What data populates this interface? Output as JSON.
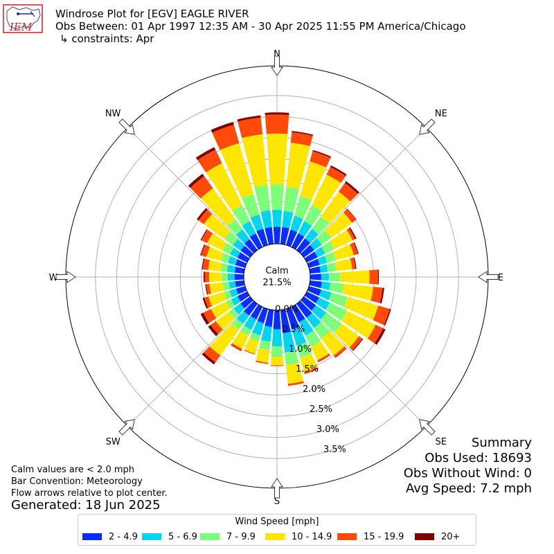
{
  "header": {
    "title": "Windrose Plot for [EGV] EAGLE RIVER",
    "subtitle": "Obs Between: 01 Apr 1997 12:35 AM - 30 Apr 2025 11:55 PM America/Chicago",
    "constraints": "↳ constraints: Apr"
  },
  "logo": {
    "text": "IEM"
  },
  "notes": {
    "calm": "Calm values are < 2.0 mph",
    "bar_convention": "Bar Convention: Meteorology",
    "flow": "Flow arrows relative to plot center.",
    "generated": "Generated: 18 Jun 2025"
  },
  "summary": {
    "heading": "Summary",
    "obs_used": "Obs Used: 18693",
    "obs_without_wind": "Obs Without Wind: 0",
    "avg_speed": "Avg Speed: 7.2 mph"
  },
  "legend": {
    "title": "Wind Speed [mph]",
    "items": [
      {
        "label": "2 - 4.9",
        "color": "#0a2dff"
      },
      {
        "label": "5 - 6.9",
        "color": "#00d5f0"
      },
      {
        "label": "7 - 9.9",
        "color": "#7dff7a"
      },
      {
        "label": "10 - 14.9",
        "color": "#ffe600"
      },
      {
        "label": "15 - 19.9",
        "color": "#ff4a0a"
      },
      {
        "label": "20+",
        "color": "#800000"
      }
    ]
  },
  "chart_data": {
    "type": "windrose",
    "calm_label": "Calm",
    "calm_value": "21.5%",
    "radial_labels": [
      "0.0%",
      "0.5%",
      "1.0%",
      "1.5%",
      "2.0%",
      "2.5%",
      "3.0%",
      "3.5%"
    ],
    "radial_ticks": [
      0,
      0.5,
      1.0,
      1.5,
      2.0,
      2.5,
      3.0,
      3.5
    ],
    "rmax": 4.2,
    "compass_labels": [
      "N",
      "NE",
      "E",
      "SE",
      "S",
      "SW",
      "W",
      "NW"
    ],
    "directions_deg": [
      0,
      10,
      20,
      30,
      40,
      50,
      60,
      70,
      80,
      90,
      100,
      110,
      120,
      130,
      140,
      150,
      160,
      170,
      180,
      190,
      200,
      210,
      220,
      230,
      240,
      250,
      260,
      270,
      280,
      290,
      300,
      310,
      320,
      330,
      340,
      350
    ],
    "bins": [
      "2 - 4.9",
      "5 - 6.9",
      "7 - 9.9",
      "10 - 14.9",
      "15 - 19.9",
      "20+"
    ],
    "cumulative": [
      [
        0.4,
        0.8,
        1.4,
        2.6,
        3.05,
        3.1
      ],
      [
        0.4,
        0.78,
        1.35,
        2.4,
        2.65,
        2.68
      ],
      [
        0.38,
        0.72,
        1.2,
        2.05,
        2.3,
        2.33
      ],
      [
        0.36,
        0.68,
        1.1,
        1.9,
        2.1,
        2.14
      ],
      [
        0.34,
        0.62,
        0.98,
        1.7,
        1.95,
        2.0
      ],
      [
        0.3,
        0.52,
        0.8,
        1.4,
        1.52,
        1.53
      ],
      [
        0.28,
        0.48,
        0.72,
        1.2,
        1.27,
        1.3
      ],
      [
        0.26,
        0.44,
        0.66,
        1.1,
        1.2,
        1.22
      ],
      [
        0.25,
        0.42,
        0.62,
        1.0,
        1.08,
        1.1
      ],
      [
        0.26,
        0.44,
        0.7,
        1.4,
        1.6,
        1.62
      ],
      [
        0.28,
        0.48,
        0.8,
        1.5,
        1.72,
        1.76
      ],
      [
        0.3,
        0.55,
        0.95,
        1.7,
        1.98,
        2.01
      ],
      [
        0.32,
        0.6,
        1.05,
        1.8,
        2.0,
        2.06
      ],
      [
        0.35,
        0.65,
        1.1,
        1.6,
        1.7,
        1.72
      ],
      [
        0.4,
        0.7,
        1.0,
        1.5,
        1.56,
        1.57
      ],
      [
        0.4,
        0.75,
        1.05,
        1.4,
        1.44,
        1.45
      ],
      [
        0.5,
        0.9,
        1.2,
        1.55,
        1.6,
        1.6
      ],
      [
        0.55,
        1.0,
        1.3,
        1.75,
        1.8,
        1.8
      ],
      [
        0.45,
        0.85,
        1.1,
        1.3,
        1.32,
        1.32
      ],
      [
        0.4,
        0.75,
        0.95,
        1.25,
        1.28,
        1.28
      ],
      [
        0.35,
        0.65,
        0.8,
        1.1,
        1.12,
        1.12
      ],
      [
        0.33,
        0.6,
        0.75,
        1.1,
        1.15,
        1.16
      ],
      [
        0.34,
        0.58,
        0.75,
        1.5,
        1.7,
        1.76
      ],
      [
        0.28,
        0.48,
        0.62,
        1.0,
        1.15,
        1.22
      ],
      [
        0.25,
        0.42,
        0.55,
        0.95,
        1.15,
        1.22
      ],
      [
        0.22,
        0.38,
        0.52,
        0.9,
        1.0,
        1.04
      ],
      [
        0.21,
        0.36,
        0.5,
        0.82,
        0.9,
        0.92
      ],
      [
        0.22,
        0.38,
        0.52,
        0.82,
        0.92,
        0.95
      ],
      [
        0.22,
        0.4,
        0.55,
        0.85,
        0.98,
        1.0
      ],
      [
        0.24,
        0.42,
        0.6,
        0.95,
        1.08,
        1.1
      ],
      [
        0.26,
        0.45,
        0.65,
        1.05,
        1.2,
        1.22
      ],
      [
        0.28,
        0.5,
        0.75,
        1.35,
        1.5,
        1.55
      ],
      [
        0.32,
        0.6,
        0.9,
        1.8,
        2.15,
        2.22
      ],
      [
        0.36,
        0.68,
        1.1,
        2.2,
        2.55,
        2.62
      ],
      [
        0.4,
        0.75,
        1.25,
        2.5,
        2.95,
        3.02
      ],
      [
        0.4,
        0.8,
        1.4,
        2.6,
        3.0,
        3.05
      ]
    ]
  }
}
